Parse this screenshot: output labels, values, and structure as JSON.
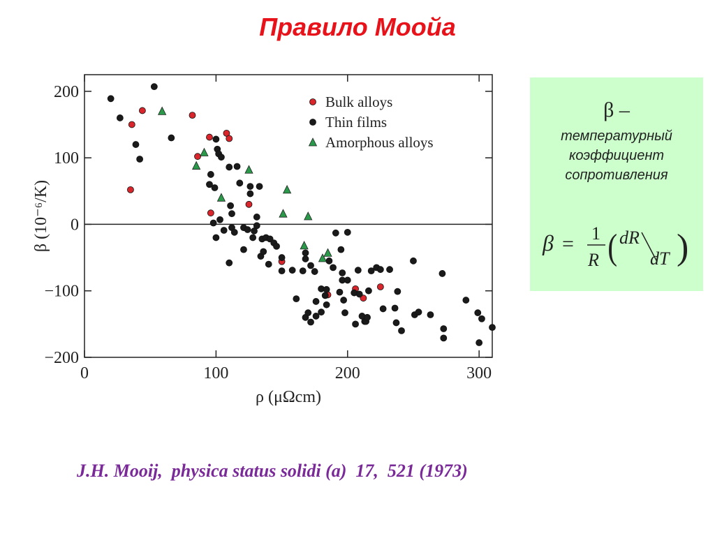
{
  "slide": {
    "title": "Правило Моойа",
    "citation": "J.H. Mooij,  physica status solidi (a)  17,  521 (1973)"
  },
  "info_box": {
    "symbol_line": "β –",
    "description_lines": [
      "температурный",
      "коэффициент",
      "сопротивления"
    ],
    "formula": {
      "lhs": "β",
      "equals": "=",
      "numerator": "1",
      "denominator": "R",
      "dR": "dR",
      "dT": "dT",
      "open_paren": "(",
      "close_paren": ")"
    },
    "background_color": "#ccffcc"
  },
  "chart_data": {
    "type": "scatter",
    "title": "",
    "xlabel": "ρ (μΩcm)",
    "ylabel": "β (10⁻⁶/K)",
    "xlim": [
      0,
      310
    ],
    "ylim": [
      -200,
      225
    ],
    "x_ticks": [
      {
        "value": 0,
        "label": "0"
      },
      {
        "value": 100,
        "label": "100"
      },
      {
        "value": 200,
        "label": "200"
      },
      {
        "value": 300,
        "label": "300"
      }
    ],
    "y_ticks": [
      {
        "value": 200,
        "label": "200"
      },
      {
        "value": 100,
        "label": "100"
      },
      {
        "value": 0,
        "label": "0"
      },
      {
        "value": -100,
        "label": "−100"
      },
      {
        "value": -200,
        "label": "−200"
      }
    ],
    "zero_line": true,
    "grid": false,
    "legend_position": "top-right",
    "series": [
      {
        "name": "Bulk alloys",
        "marker": "circle",
        "color": "#d9262c",
        "points": [
          [
            35,
            52
          ],
          [
            36,
            150
          ],
          [
            44,
            171
          ],
          [
            82,
            164
          ],
          [
            86,
            102
          ],
          [
            95,
            131
          ],
          [
            96,
            17
          ],
          [
            108,
            137
          ],
          [
            110,
            129
          ],
          [
            125,
            30
          ],
          [
            150,
            -56
          ],
          [
            185,
            -106
          ],
          [
            206,
            -97
          ],
          [
            212,
            -111
          ],
          [
            225,
            -94
          ]
        ]
      },
      {
        "name": "Thin films",
        "marker": "circle",
        "color": "#1a1a1a",
        "points": [
          [
            20,
            189
          ],
          [
            27,
            160
          ],
          [
            39,
            120
          ],
          [
            42,
            98
          ],
          [
            53,
            207
          ],
          [
            66,
            130
          ],
          [
            95,
            60
          ],
          [
            96,
            75
          ],
          [
            98,
            2
          ],
          [
            99,
            55
          ],
          [
            100,
            -20
          ],
          [
            100,
            128
          ],
          [
            101,
            113
          ],
          [
            102,
            106
          ],
          [
            103,
            7
          ],
          [
            104,
            101
          ],
          [
            106,
            -9
          ],
          [
            110,
            -58
          ],
          [
            110,
            86
          ],
          [
            111,
            28
          ],
          [
            112,
            16
          ],
          [
            112,
            -5
          ],
          [
            114,
            -12
          ],
          [
            116,
            87
          ],
          [
            118,
            62
          ],
          [
            121,
            -38
          ],
          [
            121,
            -5
          ],
          [
            124,
            -8
          ],
          [
            126,
            57
          ],
          [
            126,
            46
          ],
          [
            128,
            -20
          ],
          [
            129,
            -10
          ],
          [
            131,
            -2
          ],
          [
            131,
            11
          ],
          [
            133,
            57
          ],
          [
            134,
            -48
          ],
          [
            135,
            -22
          ],
          [
            136,
            -41
          ],
          [
            138,
            -20
          ],
          [
            140,
            -60
          ],
          [
            141,
            -22
          ],
          [
            144,
            -28
          ],
          [
            146,
            -33
          ],
          [
            150,
            -70
          ],
          [
            150,
            -50
          ],
          [
            158,
            -69
          ],
          [
            161,
            -112
          ],
          [
            166,
            -70
          ],
          [
            168,
            -43
          ],
          [
            168,
            -52
          ],
          [
            168,
            -140
          ],
          [
            170,
            -133
          ],
          [
            172,
            -62
          ],
          [
            172,
            -147
          ],
          [
            175,
            -71
          ],
          [
            176,
            -138
          ],
          [
            176,
            -116
          ],
          [
            180,
            -132
          ],
          [
            180,
            -97
          ],
          [
            183,
            -107
          ],
          [
            184,
            -121
          ],
          [
            184,
            -98
          ],
          [
            186,
            -55
          ],
          [
            189,
            -65
          ],
          [
            191,
            -13
          ],
          [
            194,
            -102
          ],
          [
            195,
            -38
          ],
          [
            196,
            -84
          ],
          [
            196,
            -73
          ],
          [
            197,
            -114
          ],
          [
            198,
            -133
          ],
          [
            200,
            -84
          ],
          [
            200,
            -12
          ],
          [
            205,
            -103
          ],
          [
            206,
            -150
          ],
          [
            208,
            -69
          ],
          [
            209,
            -105
          ],
          [
            211,
            -138
          ],
          [
            213,
            -146
          ],
          [
            214,
            -146
          ],
          [
            215,
            -140
          ],
          [
            216,
            -100
          ],
          [
            218,
            -70
          ],
          [
            222,
            -65
          ],
          [
            225,
            -68
          ],
          [
            227,
            -127
          ],
          [
            232,
            -68
          ],
          [
            236,
            -126
          ],
          [
            237,
            -148
          ],
          [
            241,
            -160
          ],
          [
            250,
            -55
          ],
          [
            251,
            -136
          ],
          [
            254,
            -132
          ],
          [
            263,
            -136
          ],
          [
            272,
            -74
          ],
          [
            273,
            -157
          ],
          [
            273,
            -171
          ],
          [
            290,
            -114
          ],
          [
            299,
            -133
          ],
          [
            300,
            -178
          ],
          [
            302,
            -142
          ],
          [
            310,
            -155
          ],
          [
            238,
            -101
          ]
        ]
      },
      {
        "name": "Amorphous alloys",
        "marker": "triangle",
        "color": "#2a9a4a",
        "points": [
          [
            59,
            170
          ],
          [
            85,
            88
          ],
          [
            91,
            108
          ],
          [
            104,
            40
          ],
          [
            125,
            82
          ],
          [
            151,
            16
          ],
          [
            154,
            52
          ],
          [
            170,
            12
          ],
          [
            167,
            -32
          ],
          [
            181,
            -51
          ],
          [
            185,
            -43
          ]
        ]
      }
    ]
  }
}
